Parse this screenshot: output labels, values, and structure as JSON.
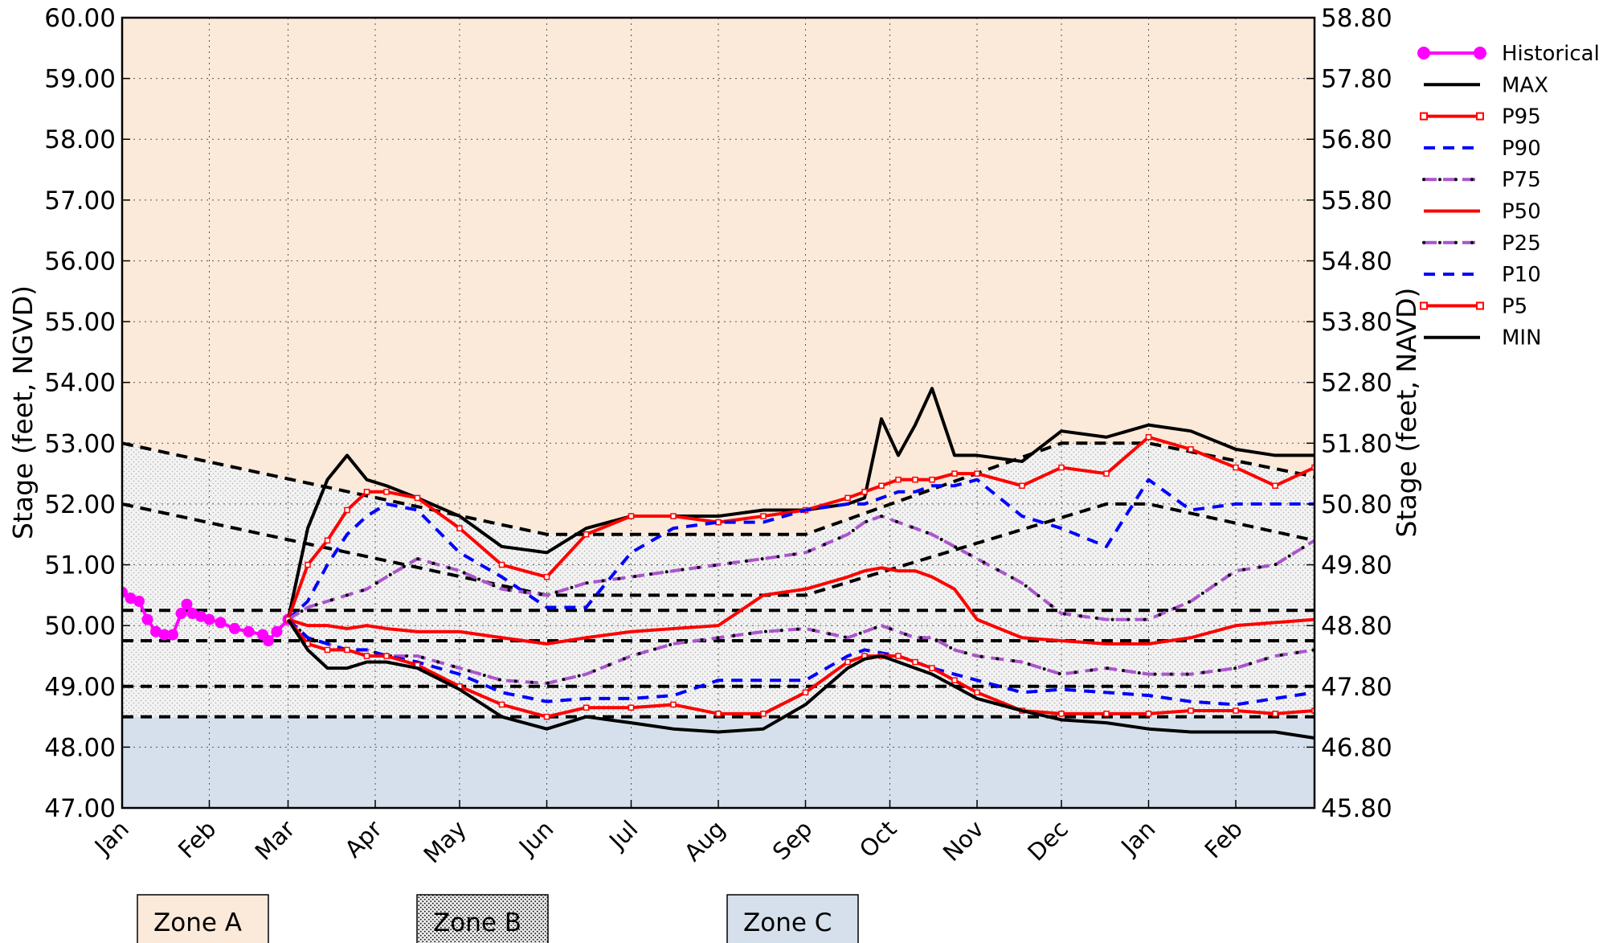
{
  "chart_data": {
    "type": "line",
    "ylabel": "Stage (feet, NGVD)",
    "y2label": "Stage (feet, NAVD)",
    "ylim": [
      47,
      60
    ],
    "yticks": [
      {
        "value": 47,
        "label": "47.00"
      },
      {
        "value": 48,
        "label": "48.00"
      },
      {
        "value": 49,
        "label": "49.00"
      },
      {
        "value": 50,
        "label": "50.00"
      },
      {
        "value": 51,
        "label": "51.00"
      },
      {
        "value": 52,
        "label": "52.00"
      },
      {
        "value": 53,
        "label": "53.00"
      },
      {
        "value": 54,
        "label": "54.00"
      },
      {
        "value": 55,
        "label": "55.00"
      },
      {
        "value": 56,
        "label": "56.00"
      },
      {
        "value": 57,
        "label": "57.00"
      },
      {
        "value": 58,
        "label": "58.00"
      },
      {
        "value": 59,
        "label": "59.00"
      },
      {
        "value": 60,
        "label": "60.00"
      }
    ],
    "y2lim": [
      45.8,
      58.8
    ],
    "y2ticks": [
      {
        "value": 45.8,
        "label": "45.80"
      },
      {
        "value": 46.8,
        "label": "46.80"
      },
      {
        "value": 47.8,
        "label": "47.80"
      },
      {
        "value": 48.8,
        "label": "48.80"
      },
      {
        "value": 49.8,
        "label": "49.80"
      },
      {
        "value": 50.8,
        "label": "50.80"
      },
      {
        "value": 51.8,
        "label": "51.80"
      },
      {
        "value": 52.8,
        "label": "52.80"
      },
      {
        "value": 53.8,
        "label": "53.80"
      },
      {
        "value": 54.8,
        "label": "54.80"
      },
      {
        "value": 55.8,
        "label": "55.80"
      },
      {
        "value": 56.8,
        "label": "56.80"
      },
      {
        "value": 57.8,
        "label": "57.80"
      },
      {
        "value": 58.8,
        "label": "58.80"
      }
    ],
    "xlim": [
      0,
      424
    ],
    "xticks": [
      {
        "value": 0,
        "label": "Jan"
      },
      {
        "value": 31,
        "label": "Feb"
      },
      {
        "value": 59,
        "label": "Mar"
      },
      {
        "value": 90,
        "label": "Apr"
      },
      {
        "value": 120,
        "label": "May"
      },
      {
        "value": 151,
        "label": "Jun"
      },
      {
        "value": 181,
        "label": "Jul"
      },
      {
        "value": 212,
        "label": "Aug"
      },
      {
        "value": 243,
        "label": "Sep"
      },
      {
        "value": 273,
        "label": "Oct"
      },
      {
        "value": 304,
        "label": "Nov"
      },
      {
        "value": 334,
        "label": "Dec"
      },
      {
        "value": 365,
        "label": "Jan"
      },
      {
        "value": 396,
        "label": "Feb"
      }
    ],
    "grid": true,
    "legend": "right",
    "x": [
      59,
      66,
      73,
      80,
      87,
      94,
      105,
      120,
      135,
      151,
      165,
      181,
      196,
      212,
      228,
      243,
      258,
      264,
      270,
      276,
      282,
      288,
      296,
      304,
      320,
      334,
      350,
      365,
      380,
      396,
      410,
      424
    ],
    "series": [
      {
        "name": "Historical",
        "color": "#ff00ff",
        "linestyle": "solid",
        "marker": "circle",
        "x": [
          0,
          3,
          6,
          9,
          12,
          15,
          18,
          21,
          23,
          25,
          28,
          31,
          35,
          40,
          45,
          50,
          52,
          55,
          59
        ],
        "values": [
          50.55,
          50.45,
          50.4,
          50.1,
          49.9,
          49.85,
          49.85,
          50.2,
          50.35,
          50.2,
          50.15,
          50.1,
          50.05,
          49.95,
          49.9,
          49.85,
          49.75,
          49.9,
          50.1
        ]
      },
      {
        "name": "MAX",
        "color": "#000000",
        "linestyle": "solid",
        "values": [
          50.1,
          51.6,
          52.4,
          52.8,
          52.4,
          52.3,
          52.1,
          51.8,
          51.3,
          51.2,
          51.6,
          51.8,
          51.8,
          51.8,
          51.9,
          51.9,
          52.0,
          52.1,
          53.4,
          52.8,
          53.3,
          53.9,
          52.8,
          52.8,
          52.7,
          53.2,
          53.1,
          53.3,
          53.2,
          52.9,
          52.8,
          52.8
        ]
      },
      {
        "name": "P95",
        "color": "#ff0000",
        "linestyle": "solid",
        "marker": "square",
        "values": [
          50.1,
          51.0,
          51.4,
          51.9,
          52.2,
          52.2,
          52.1,
          51.6,
          51.0,
          50.8,
          51.5,
          51.8,
          51.8,
          51.7,
          51.8,
          51.9,
          52.1,
          52.2,
          52.3,
          52.4,
          52.4,
          52.4,
          52.5,
          52.5,
          52.3,
          52.6,
          52.5,
          53.1,
          52.9,
          52.6,
          52.3,
          52.6
        ]
      },
      {
        "name": "P90",
        "color": "#0000ff",
        "linestyle": "dashed",
        "values": [
          50.1,
          50.4,
          51.0,
          51.5,
          51.8,
          52.0,
          51.9,
          51.2,
          50.8,
          50.3,
          50.3,
          51.2,
          51.6,
          51.7,
          51.7,
          51.9,
          52.0,
          52.0,
          52.1,
          52.2,
          52.2,
          52.3,
          52.3,
          52.4,
          51.8,
          51.6,
          51.3,
          52.4,
          51.9,
          52.0,
          52.0,
          52.0
        ]
      },
      {
        "name": "P75",
        "color": "#aa55cc",
        "linestyle": "dashdot",
        "values": [
          50.1,
          50.3,
          50.4,
          50.5,
          50.6,
          50.8,
          51.1,
          50.9,
          50.6,
          50.5,
          50.7,
          50.8,
          50.9,
          51.0,
          51.1,
          51.2,
          51.5,
          51.7,
          51.8,
          51.7,
          51.6,
          51.5,
          51.3,
          51.1,
          50.7,
          50.2,
          50.1,
          50.1,
          50.4,
          50.9,
          51.0,
          51.4
        ]
      },
      {
        "name": "P50",
        "color": "#ff0000",
        "linestyle": "solid",
        "values": [
          50.1,
          50.0,
          50.0,
          49.95,
          50.0,
          49.95,
          49.9,
          49.9,
          49.8,
          49.7,
          49.8,
          49.9,
          49.95,
          50.0,
          50.5,
          50.6,
          50.8,
          50.9,
          50.95,
          50.9,
          50.9,
          50.8,
          50.6,
          50.1,
          49.8,
          49.75,
          49.7,
          49.7,
          49.8,
          50.0,
          50.05,
          50.1
        ]
      },
      {
        "name": "P25",
        "color": "#aa55cc",
        "linestyle": "dashdot",
        "values": [
          50.1,
          49.8,
          49.7,
          49.6,
          49.6,
          49.5,
          49.5,
          49.3,
          49.1,
          49.05,
          49.2,
          49.5,
          49.7,
          49.8,
          49.9,
          49.95,
          49.8,
          49.9,
          50.0,
          49.9,
          49.8,
          49.8,
          49.6,
          49.5,
          49.4,
          49.2,
          49.3,
          49.2,
          49.2,
          49.3,
          49.5,
          49.6
        ]
      },
      {
        "name": "P10",
        "color": "#0000ff",
        "linestyle": "dashed",
        "values": [
          50.1,
          49.8,
          49.7,
          49.6,
          49.6,
          49.5,
          49.4,
          49.2,
          48.9,
          48.75,
          48.8,
          48.8,
          48.85,
          49.1,
          49.1,
          49.1,
          49.5,
          49.6,
          49.55,
          49.5,
          49.4,
          49.3,
          49.2,
          49.1,
          48.9,
          48.95,
          48.9,
          48.85,
          48.75,
          48.7,
          48.8,
          48.9
        ]
      },
      {
        "name": "P5",
        "color": "#ff0000",
        "linestyle": "solid",
        "marker": "square",
        "values": [
          50.1,
          49.7,
          49.6,
          49.6,
          49.5,
          49.5,
          49.35,
          49.0,
          48.7,
          48.5,
          48.65,
          48.65,
          48.7,
          48.55,
          48.55,
          48.9,
          49.4,
          49.5,
          49.5,
          49.5,
          49.4,
          49.3,
          49.1,
          48.9,
          48.6,
          48.55,
          48.55,
          48.55,
          48.6,
          48.6,
          48.55,
          48.6
        ]
      },
      {
        "name": "MIN",
        "color": "#000000",
        "linestyle": "solid",
        "values": [
          50.1,
          49.6,
          49.3,
          49.3,
          49.4,
          49.4,
          49.3,
          48.95,
          48.5,
          48.3,
          48.5,
          48.4,
          48.3,
          48.25,
          48.3,
          48.7,
          49.3,
          49.45,
          49.5,
          49.4,
          49.3,
          49.2,
          49.0,
          48.8,
          48.6,
          48.45,
          48.4,
          48.3,
          48.25,
          48.25,
          48.25,
          48.15
        ]
      }
    ],
    "reference_lines": [
      {
        "x": [
          0,
          151,
          243,
          334,
          365,
          424
        ],
        "values": [
          53.0,
          51.5,
          51.5,
          53.0,
          53.0,
          52.45
        ]
      },
      {
        "x": [
          0,
          151,
          243,
          350,
          365,
          424
        ],
        "values": [
          52.0,
          50.5,
          50.5,
          52.0,
          52.0,
          51.4
        ]
      },
      {
        "x": [
          0,
          424
        ],
        "values": [
          50.25,
          50.25
        ]
      },
      {
        "x": [
          0,
          424
        ],
        "values": [
          49.75,
          49.75
        ]
      },
      {
        "x": [
          0,
          424
        ],
        "values": [
          49.0,
          49.0
        ]
      },
      {
        "x": [
          0,
          424
        ],
        "values": [
          48.5,
          48.5
        ]
      }
    ],
    "zones": [
      {
        "label": "Zone A",
        "color": "#fbe9d9"
      },
      {
        "label": "Zone B",
        "color": "#ececec"
      },
      {
        "label": "Zone C",
        "color": "#d6e0ec"
      }
    ]
  }
}
